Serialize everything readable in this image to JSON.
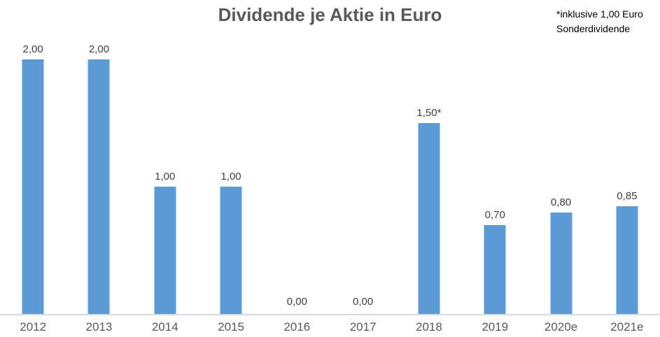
{
  "chart_data": {
    "type": "bar",
    "title": "Dividende je Aktie in Euro",
    "annotation": {
      "line1": "*inklusive 1,00 Euro",
      "line2": "Sonderdividende"
    },
    "categories": [
      "2012",
      "2013",
      "2014",
      "2015",
      "2016",
      "2017",
      "2018",
      "2019",
      "2020e",
      "2021e"
    ],
    "values": [
      2.0,
      2.0,
      1.0,
      1.0,
      0.0,
      0.0,
      1.5,
      0.7,
      0.8,
      0.85
    ],
    "value_labels": [
      "2,00",
      "2,00",
      "1,00",
      "1,00",
      "0,00",
      "0,00",
      "1,50*",
      "0,70",
      "0,80",
      "0,85"
    ],
    "xlabel": "",
    "ylabel": "",
    "ylim": [
      0,
      2.0
    ],
    "grid": false,
    "legend_position": "none",
    "bar_color": "#5B9BD5",
    "axis_line_color": "#D9D9D9",
    "title_color": "#595959",
    "tick_label_color": "#595959",
    "value_label_color": "#404040"
  }
}
